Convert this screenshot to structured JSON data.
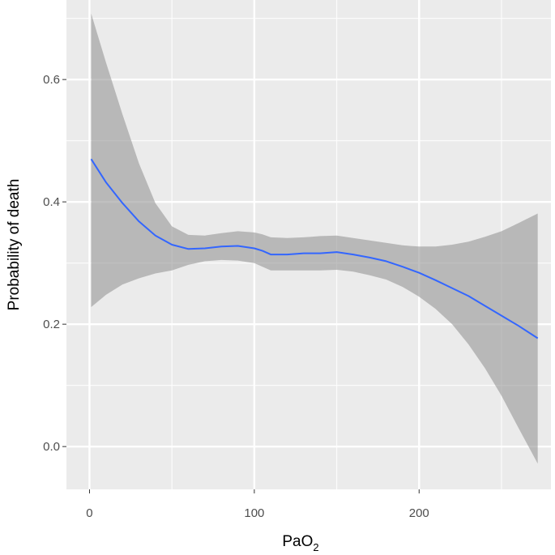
{
  "chart_data": {
    "type": "line",
    "title": "",
    "xlabel": "PaO",
    "xlabel_subscript": "2",
    "ylabel": "Probability of death",
    "xlim": [
      -14,
      280
    ],
    "ylim": [
      -0.07,
      0.73
    ],
    "x_ticks": [
      0,
      100,
      200
    ],
    "x_tick_labels": [
      "0",
      "100",
      "200"
    ],
    "x_minor_grid": [
      50,
      150,
      250
    ],
    "y_ticks": [
      0.0,
      0.2,
      0.4,
      0.6
    ],
    "y_tick_labels": [
      "0.0",
      "0.2",
      "0.4",
      "0.6"
    ],
    "y_minor_grid": [
      0.1,
      0.3,
      0.5,
      0.7
    ],
    "grid": true,
    "legend": "none",
    "colors": {
      "panel": "#ebebeb",
      "grid": "#ffffff",
      "line": "#3366ff",
      "band": "#999999"
    },
    "series": [
      {
        "x": [
          1,
          10,
          20,
          30,
          40,
          50,
          60,
          70,
          80,
          90,
          100,
          105,
          110,
          120,
          130,
          140,
          150,
          160,
          170,
          180,
          190,
          200,
          210,
          220,
          230,
          240,
          250,
          260,
          272
        ],
        "y": [
          0.47,
          0.432,
          0.398,
          0.368,
          0.345,
          0.33,
          0.323,
          0.324,
          0.327,
          0.328,
          0.324,
          0.32,
          0.314,
          0.314,
          0.316,
          0.316,
          0.318,
          0.314,
          0.309,
          0.303,
          0.294,
          0.284,
          0.272,
          0.259,
          0.246,
          0.23,
          0.214,
          0.198,
          0.177
        ],
        "y_lower": [
          0.228,
          0.248,
          0.265,
          0.275,
          0.283,
          0.288,
          0.297,
          0.303,
          0.305,
          0.304,
          0.3,
          0.294,
          0.288,
          0.288,
          0.288,
          0.288,
          0.289,
          0.286,
          0.28,
          0.273,
          0.261,
          0.245,
          0.225,
          0.2,
          0.167,
          0.128,
          0.083,
          0.032,
          -0.028
        ],
        "y_upper": [
          0.708,
          0.628,
          0.543,
          0.463,
          0.398,
          0.36,
          0.346,
          0.345,
          0.349,
          0.352,
          0.35,
          0.347,
          0.342,
          0.341,
          0.342,
          0.344,
          0.345,
          0.341,
          0.337,
          0.333,
          0.329,
          0.327,
          0.327,
          0.33,
          0.335,
          0.343,
          0.352,
          0.365,
          0.381
        ]
      }
    ]
  }
}
